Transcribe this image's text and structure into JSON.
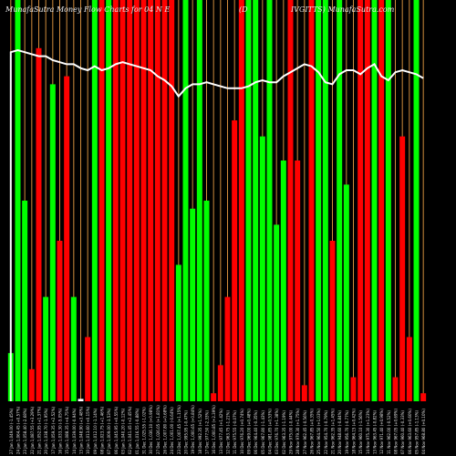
{
  "header": {
    "title_left": "MunafaSutra  Money Flow  Charts for 04 N E",
    "title_mid": "(D",
    "title_right": "IVGITTS) MunafaSutra.com"
  },
  "colors": {
    "background": "#000000",
    "up": "#00ff00",
    "down": "#ff0000",
    "grid": "#d08c3c",
    "line": "#ffffff",
    "text": "#e8e8e8"
  },
  "chart_data": {
    "type": "bar",
    "categories": [
      "27 Jan 1,049.00 (-1.45%)",
      "24 Jan 1,064.45 (+0.57%)",
      "23 Jan 1,058.40 (-2.68%)",
      "22 Jan 1,087.55 (+3.29%)",
      "21 Jan 1,052.95 (+1.37%)",
      "20 Jan 1,038.70 (-1.95%)",
      "17 Jan 1,059.35 (+2.52%)",
      "16 Jan 1,033.30 (-5.05%)",
      "15 Jan 1,088.35 (+4.75%)",
      "14 Jan 1,039.00 (-0.94%)",
      "13 Jan 1,048.90 (+3.48%)",
      "10 Jan 1,013.60 (+0.15%)",
      "09 Jan 1,012.10 (-1.14%)",
      "08 Jan 1,023.75 (+1.46%)",
      "07 Jan 1,009.00 (-3.53%)",
      "06 Jan 1,045.95 (+0.55%)",
      "03 Jan 1,040.20 (-0.12%)",
      "02 Jan 1,041.45 (+2.45%)",
      "01 Jan 1,016.55 (-0.88%)",
      "31 Dec 1,025.55 (-1.02%)",
      "30 Dec 1,036.10 (+0.98%)",
      "27 Dec 1,026.05 (+1.81%)",
      "26 Dec 1,007.80 (+0.68%)",
      "24 Dec 1,001.00 (-0.64%)",
      "23 Dec 1,007.45 (+1.15%)",
      "20 Dec 995.95 (-0.47%)",
      "19 Dec 1,000.65 (+0.84%)",
      "18 Dec 992.35 (+1.52%)",
      "17 Dec 977.50 (-2.33%)",
      "16 Dec 1,000.85 (+2.39%)",
      "13 Dec 977.45 (+1.42%)",
      "12 Dec 963.75 (-1.21%)",
      "11 Dec 975.55 (-0.07%)",
      "10 Dec 976.20 (+0.74%)",
      "09 Dec 969.00 (+0.48%)",
      "06 Dec 964.40 (-0.35%)",
      "05 Dec 967.80 (-1.43%)",
      "04 Dec 981.85 (+0.53%)",
      "03 Dec 976.70 (+1.38%)",
      "02 Dec 963.35 (-1.19%)",
      "29 Nov 975.00 (-0.44%)",
      "28 Nov 979.30 (+1.75%)",
      "27 Nov 962.45 (-0.56%)",
      "26 Nov 967.85 (+0.35%)",
      "25 Nov 964.50 (+1.03%)",
      "22 Nov 954.70 (-0.79%)",
      "21 Nov 962.35 (+1.45%)",
      "20 Nov 948.60 (-0.84%)",
      "19 Nov 956.70 (-0.77%)",
      "18 Nov 964.15 (+0.42%)",
      "15 Nov 960.10 (-1.56%)",
      "14 Nov 975.30 (+1.23%)",
      "13 Nov 963.45 (-0.82%)",
      "12 Nov 971.40 (+0.98%)",
      "11 Nov 962.00 (-0.52%)",
      "08 Nov 967.05 (+0.69%)",
      "07 Nov 960.40 (-0.33%)",
      "06 Nov 963.60 (+0.60%)",
      "05 Nov 957.85 (-1.13%)",
      "04 Nov 968.80 (+0.10%)"
    ],
    "series": [
      {
        "colors": [
          "g",
          "g",
          "g",
          "r",
          "r",
          "g",
          "g",
          "r",
          "r",
          "g",
          "w",
          "r",
          "g",
          "r",
          "g",
          "r",
          "r",
          "r",
          "r",
          "r",
          "r",
          "r",
          "r",
          "r",
          "g",
          "g",
          "g",
          "g",
          "g",
          "r",
          "r",
          "r",
          "r",
          "r",
          "g",
          "g",
          "g",
          "g",
          "g",
          "g",
          "r",
          "r",
          "r",
          "r",
          "g",
          "g",
          "r",
          "g",
          "g",
          "r",
          "r",
          "r",
          "g",
          "r",
          "g",
          "r",
          "r",
          "r",
          "g",
          "r"
        ],
        "values": [
          60,
          500,
          250,
          40,
          440,
          130,
          395,
          200,
          405,
          130,
          3,
          80,
          500,
          500,
          500,
          500,
          500,
          500,
          500,
          500,
          500,
          500,
          500,
          500,
          170,
          500,
          240,
          500,
          250,
          10,
          45,
          130,
          350,
          500,
          500,
          500,
          330,
          500,
          220,
          300,
          500,
          300,
          20,
          520,
          500,
          500,
          200,
          500,
          270,
          30,
          500,
          500,
          500,
          520,
          500,
          30,
          330,
          80,
          600,
          10
        ]
      }
    ],
    "line_values": [
      1.74,
      1.75,
      1.74,
      1.73,
      1.72,
      1.72,
      1.7,
      1.69,
      1.68,
      1.68,
      1.66,
      1.65,
      1.67,
      1.65,
      1.66,
      1.68,
      1.69,
      1.68,
      1.67,
      1.66,
      1.65,
      1.62,
      1.6,
      1.57,
      1.52,
      1.56,
      1.58,
      1.58,
      1.59,
      1.58,
      1.57,
      1.56,
      1.56,
      1.56,
      1.57,
      1.59,
      1.6,
      1.59,
      1.59,
      1.62,
      1.64,
      1.66,
      1.68,
      1.67,
      1.64,
      1.59,
      1.58,
      1.63,
      1.65,
      1.65,
      1.63,
      1.66,
      1.68,
      1.62,
      1.6,
      1.64,
      1.65,
      1.64,
      1.63,
      1.61
    ],
    "ylim": [
      0,
      2
    ],
    "grid": true
  }
}
